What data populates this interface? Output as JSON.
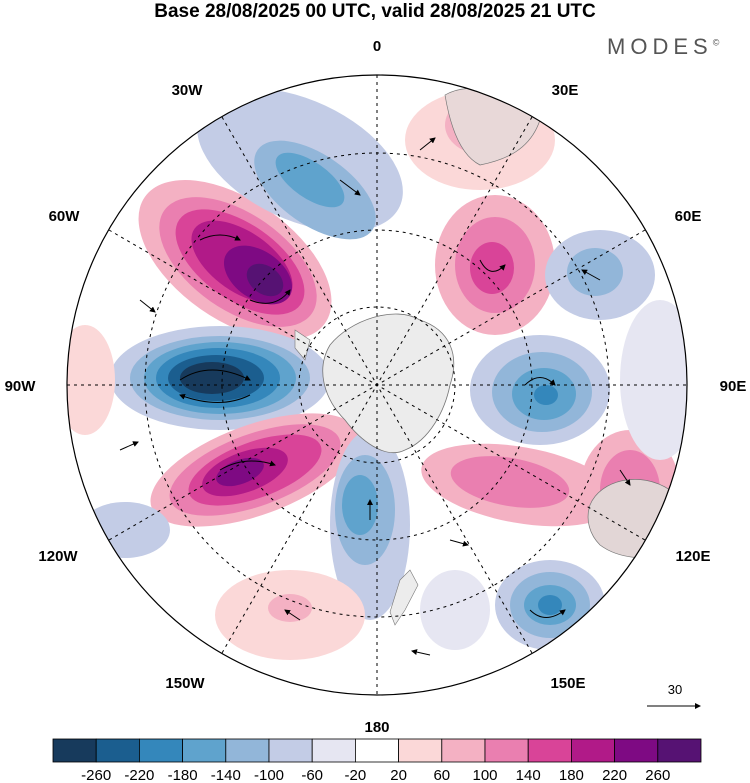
{
  "header": {
    "title": "Base 28/08/2025 00 UTC, valid 28/08/2025 21 UTC",
    "brand": "MODES",
    "brand_mark": "©"
  },
  "map": {
    "projection": "South polar stereographic",
    "longitude_labels": {
      "top": "0",
      "top_right": "30E",
      "right_upper": "60E",
      "right": "90E",
      "right_lower": "120E",
      "bottom_right": "150E",
      "bottom": "180",
      "bottom_left": "150W",
      "left_lower": "120W",
      "left": "90W",
      "left_upper": "60W",
      "top_left": "30W"
    },
    "vector_reference": "30"
  },
  "colorbar": {
    "ticks": [
      "-260",
      "-220",
      "-180",
      "-140",
      "-100",
      "-60",
      "-20",
      "20",
      "60",
      "100",
      "140",
      "180",
      "220",
      "260"
    ],
    "colors": [
      "#173a5c",
      "#1b5e8f",
      "#3487bb",
      "#5fa3cd",
      "#92b6d9",
      "#c3cce6",
      "#e6e6f2",
      "#ffffff",
      "#fbd8d8",
      "#f4b1c3",
      "#ea7fb0",
      "#d94498",
      "#b11a88",
      "#7e0a83",
      "#561273"
    ]
  }
}
